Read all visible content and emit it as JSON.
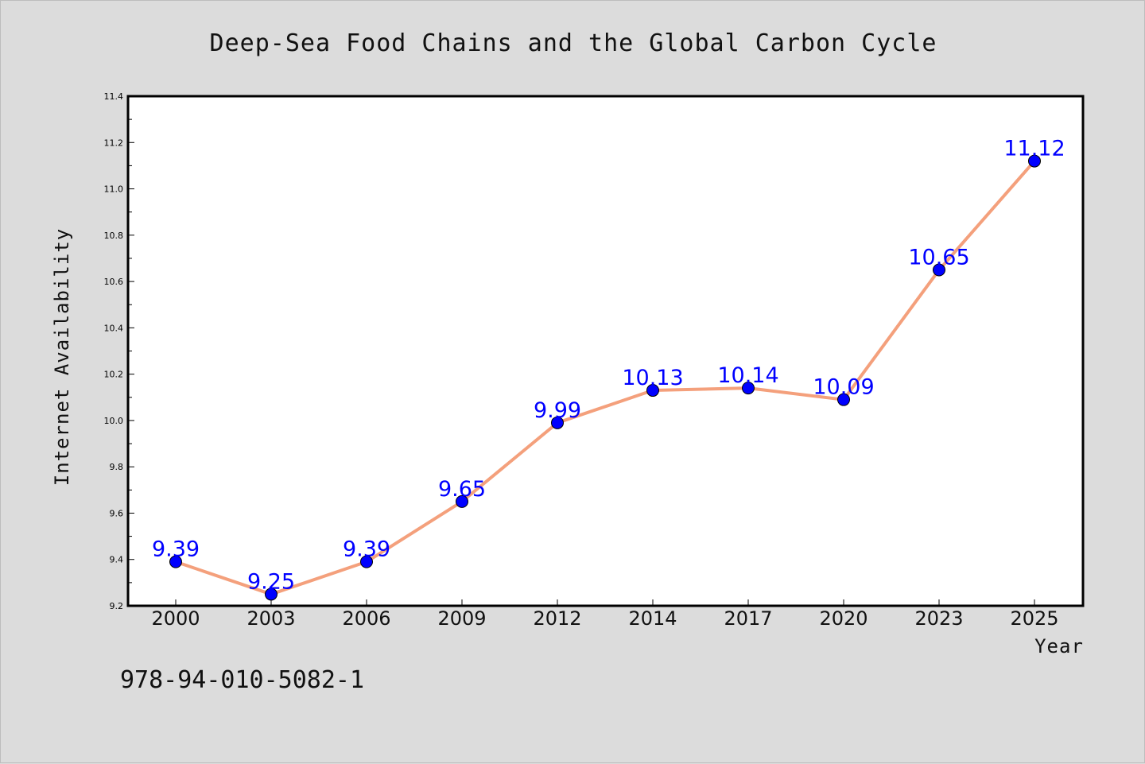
{
  "chart_data": {
    "type": "line",
    "title": "Deep-Sea Food Chains and the Global Carbon Cycle",
    "xlabel": "Year",
    "ylabel": "Internet Availability",
    "categories": [
      "2000",
      "2003",
      "2006",
      "2009",
      "2012",
      "2014",
      "2017",
      "2020",
      "2023",
      "2025"
    ],
    "series": [
      {
        "values": [
          9.39,
          9.25,
          9.39,
          9.65,
          9.99,
          10.13,
          10.14,
          10.09,
          10.65,
          11.12
        ],
        "labels": [
          "9.39",
          "9.25",
          "9.39",
          "9.65",
          "9.99",
          "10.13",
          "10.14",
          "10.09",
          "10.65",
          "11.12"
        ],
        "line_color": "#f4a07c",
        "marker_color": "#0000ff"
      }
    ],
    "ylim": [
      9.2,
      11.4
    ],
    "yticks": [
      "9.2",
      "9.4",
      "9.6",
      "9.8",
      "10.0",
      "10.2",
      "10.4",
      "10.6",
      "10.8",
      "11.0",
      "11.2",
      "11.4"
    ],
    "grid": false,
    "legend": "none"
  },
  "footer": {
    "code": "978-94-010-5082-1"
  }
}
